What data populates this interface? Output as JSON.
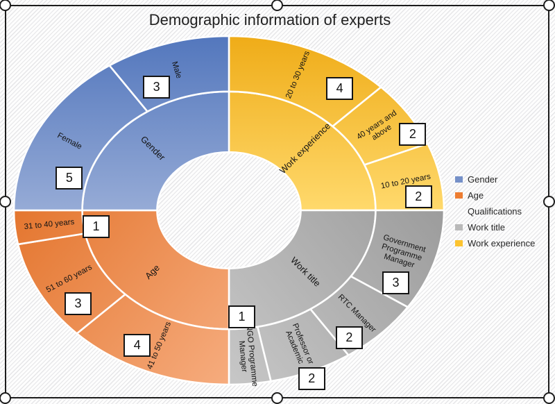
{
  "chart_data": {
    "type": "pie",
    "subtype": "sunburst-doughnut",
    "title": "Demographic information of experts",
    "total": 32,
    "legend_position": "right",
    "legend": [
      {
        "label": "Gender",
        "color": "#7590c8"
      },
      {
        "label": "Age",
        "color": "#ed7d31"
      },
      {
        "label": "Qualifications",
        "color": ""
      },
      {
        "label": "Work title",
        "color": "#b9b9b9"
      },
      {
        "label": "Work experience",
        "color": "#fcc32f"
      }
    ],
    "rings": [
      "category (inner)",
      "subcategory with count (outer)"
    ],
    "groups": [
      {
        "name": "Work experience",
        "color_dark": "#efac18",
        "color_light": "#ffd96c",
        "segments": [
          {
            "label": "20 to 30 years",
            "value": 4,
            "box": {
              "theta": 36.3,
              "r": 0.87
            }
          },
          {
            "label": "40 years and\nabove",
            "value": 2,
            "box": {
              "theta": 62.9,
              "r": 0.96
            }
          },
          {
            "label": "10 to 20 years",
            "value": 2,
            "box": {
              "theta": 85.0,
              "r": 0.885
            }
          }
        ]
      },
      {
        "name": "Work title",
        "color_dark": "#9c9c9c",
        "color_light": "#c7c7c7",
        "segments": [
          {
            "label": "Government\nProgramme\nManager",
            "value": 3,
            "box": {
              "theta": 118.3,
              "r": 0.881
            }
          },
          {
            "label": "RTC Manager",
            "value": 2,
            "box": {
              "theta": 142.5,
              "r": 0.919
            }
          },
          {
            "label": "Professor or\nAcademic",
            "value": 2,
            "box": {
              "theta": 158.3,
              "r": 1.04
            }
          },
          {
            "label": "NGO Programme\nManager",
            "value": 1,
            "box": {
              "theta": 174.4,
              "r": 0.613
            }
          }
        ]
      },
      {
        "name": "Age",
        "color_dark": "#e4762f",
        "color_light": "#f6ac7e",
        "segments": [
          {
            "label": "41 to 50 years",
            "value": 4,
            "box": {
              "theta": 208.9,
              "r": 0.883
            }
          },
          {
            "label": "51 to 60 years",
            "value": 3,
            "box": {
              "theta": 232.7,
              "r": 0.882
            }
          },
          {
            "label": "31 to 40 years",
            "value": 1,
            "box": {
              "theta": 261.2,
              "r": 0.625
            }
          }
        ]
      },
      {
        "name": "Gender",
        "color_dark": "#5377bd",
        "color_light": "#96abd6",
        "segments": [
          {
            "label": "Female",
            "value": 5,
            "box": {
              "theta": 284.0,
              "r": 0.765
            }
          },
          {
            "label": "Male",
            "value": 3,
            "box": {
              "theta": 334.6,
              "r": 0.785
            }
          }
        ]
      }
    ]
  }
}
